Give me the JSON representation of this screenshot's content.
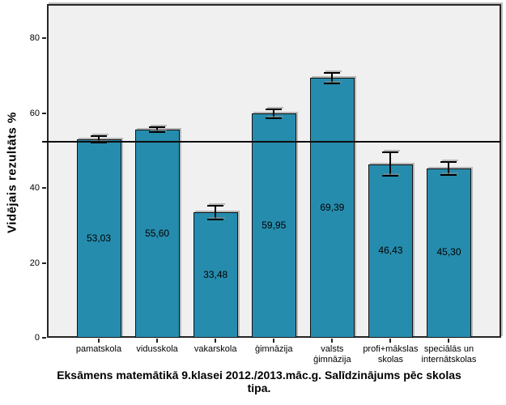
{
  "chart_data": {
    "type": "bar",
    "title": "Eksāmens matemātikā 9.klasei 2012./2013.māc.g. Salīdzinājums pēc skolas tipa.",
    "title_lines": [
      "Eksāmens matemātikā 9.klasei 2012./2013.māc.g. Salīdzinājums pēc skolas",
      "tipa."
    ],
    "ylabel": "Vidējais rezultāts %",
    "xlabel": "",
    "categories": [
      "pamatskola",
      "vidusskola",
      "vakarskola",
      "ģimnāzija",
      "valsts\nģimnāzija",
      "profi+mākslas\nskolas",
      "speciālās un\ninternātskolas"
    ],
    "values": [
      53.03,
      55.6,
      33.48,
      59.95,
      69.39,
      46.43,
      45.3
    ],
    "value_labels": [
      "53,03",
      "55,60",
      "33,48",
      "59,95",
      "69,39",
      "46,43",
      "45,30"
    ],
    "error_bars": [
      0.9,
      0.7,
      1.8,
      1.2,
      1.3,
      3.1,
      1.7
    ],
    "yticks": [
      0,
      20,
      40,
      60,
      80
    ],
    "ytick_labels": [
      "0",
      "20",
      "40",
      "60",
      "80"
    ],
    "ylim": [
      0,
      89.2
    ],
    "reference_line": 52.3,
    "grid": false,
    "legend": false,
    "bar_color": "#268CAD",
    "bar_border_color": "#111111",
    "plot_bg": "#F0F0F0",
    "page_bg": "#FFFFFF"
  }
}
